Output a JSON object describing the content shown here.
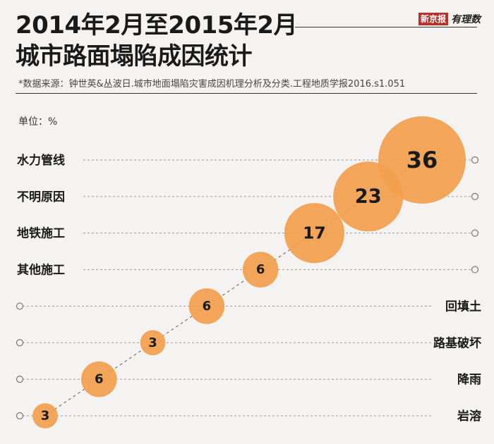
{
  "header": {
    "title_line1": "2014年2月至2015年2月",
    "title_line2": "城市路面塌陷成因统计",
    "source": "*数据来源：钟世英&丛波日.城市地面塌陷灾害成因机理分析及分类.工程地质学报2016.s1.051",
    "unit": "单位：%",
    "brand_red": "新京报",
    "brand_script": "有理数"
  },
  "colors": {
    "bubble": "#f2a04d",
    "background": "#f4f3f1"
  },
  "chart_data": {
    "type": "scatter",
    "title": "城市路面塌陷成因统计",
    "unit": "%",
    "categories": [
      "水力管线",
      "不明原因",
      "地铁施工",
      "其他施工",
      "回填土",
      "路基破坏",
      "降雨",
      "岩溶"
    ],
    "values": [
      36,
      23,
      17,
      6,
      6,
      3,
      6,
      3
    ],
    "label_side": [
      "left",
      "left",
      "left",
      "left",
      "right",
      "right",
      "right",
      "right"
    ]
  }
}
